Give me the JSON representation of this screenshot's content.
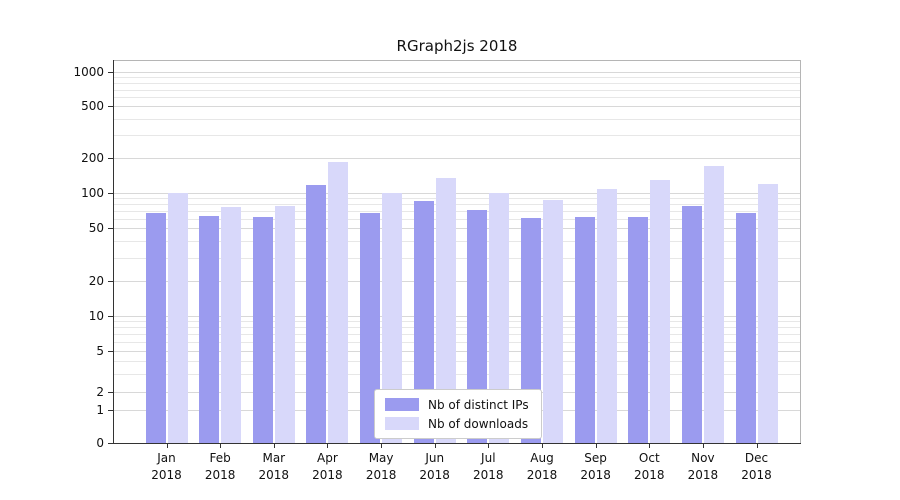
{
  "title": "RGraph2js 2018",
  "chart_data": {
    "type": "bar",
    "title": "RGraph2js 2018",
    "categories": [
      "Jan",
      "Feb",
      "Mar",
      "Apr",
      "May",
      "Jun",
      "Jul",
      "Aug",
      "Sep",
      "Oct",
      "Nov",
      "Dec"
    ],
    "category_year": "2018",
    "series": [
      {
        "name": "Nb of distinct IPs",
        "color": "#9b9bef",
        "values": [
          68,
          63,
          62,
          118,
          68,
          85,
          72,
          61,
          62,
          62,
          78,
          68
        ]
      },
      {
        "name": "Nb of downloads",
        "color": "#d8d8fa",
        "values": [
          100,
          76,
          77,
          185,
          100,
          135,
          101,
          88,
          108,
          130,
          170,
          120
        ]
      }
    ],
    "xlabel": "",
    "ylabel": "",
    "y_axis": {
      "scale": "log",
      "ticks": [
        0,
        1,
        2,
        5,
        10,
        20,
        50,
        100,
        200,
        500,
        1000
      ],
      "tick_labels": [
        "0",
        "1",
        "2",
        "5",
        "10",
        "20",
        "50",
        "100",
        "200",
        "500",
        "1000"
      ]
    },
    "legend": {
      "position": "bottom-center"
    },
    "grid": "both",
    "colors": {
      "grid_minor": "#e7e7e7",
      "grid_major": "#d8d8d8",
      "axis": "#333333",
      "frame": "#b5b5b5",
      "text": "#111111",
      "background": "#ffffff",
      "legend_border": "#cccccc"
    }
  }
}
